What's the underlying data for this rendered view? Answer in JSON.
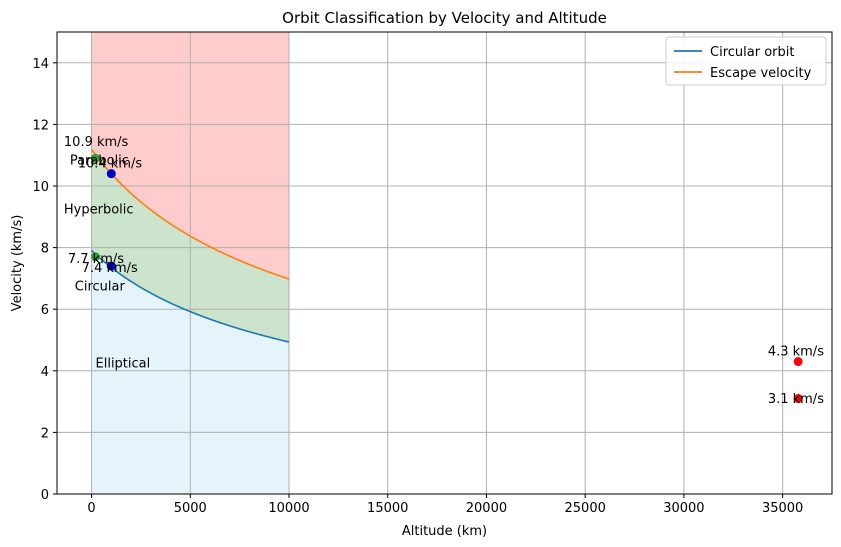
{
  "chart_data": {
    "type": "line",
    "title": "Orbit Classification by Velocity and Altitude",
    "xlabel": "Altitude (km)",
    "ylabel": "Velocity (km/s)",
    "xlim": [
      -1750,
      37500
    ],
    "ylim": [
      0,
      15
    ],
    "x_ticks": [
      0,
      5000,
      10000,
      15000,
      20000,
      25000,
      30000,
      35000
    ],
    "y_ticks": [
      0,
      2,
      4,
      6,
      8,
      10,
      12,
      14
    ],
    "grid": true,
    "legend_position": "top-right",
    "curve_altitude_range": [
      0,
      10000
    ],
    "series": [
      {
        "name": "Circular orbit",
        "color": "#1f77b4",
        "formula": "sqrt(398600/(6371+h))"
      },
      {
        "name": "Escape velocity",
        "color": "#ff7f0e",
        "formula": "sqrt(2*398600/(6371+h))"
      }
    ],
    "regions": [
      {
        "label": "Elliptical",
        "color": "#e5f3fa",
        "from": "0",
        "to": "Circular orbit",
        "label_at": [
          200,
          4.1
        ]
      },
      {
        "label": "Hyperbolic",
        "color": "#cce3cc",
        "from": "Circular orbit",
        "to": "Escape velocity",
        "label_at": [
          -1400,
          9.1
        ]
      },
      {
        "label": "Parabolic",
        "color": "#ffcccc",
        "from": "Escape velocity",
        "to": "top",
        "label_at": [
          -1100,
          10.7
        ]
      }
    ],
    "extra_labels": [
      {
        "text": "Circular",
        "x": -850,
        "y": 6.6
      }
    ],
    "points": [
      {
        "x": 200,
        "y": 7.7,
        "label": "7.7 km/s",
        "color": "#2ca02c",
        "label_at": [
          -1200,
          7.5
        ]
      },
      {
        "x": 200,
        "y": 10.9,
        "label": "10.9 km/s",
        "color": "#2ca02c",
        "label_at": [
          -1400,
          11.3
        ]
      },
      {
        "x": 1000,
        "y": 7.4,
        "label": "7.4 km/s",
        "color": "#0000cc",
        "label_at": [
          -500,
          7.2
        ]
      },
      {
        "x": 1000,
        "y": 10.4,
        "label": "10.4 km/s",
        "color": "#0000cc",
        "label_at": [
          -700,
          10.6
        ]
      },
      {
        "x": 35786,
        "y": 4.3,
        "label": "4.3 km/s",
        "color": "#ff0000",
        "label_at": [
          34250,
          4.5
        ]
      },
      {
        "x": 35786,
        "y": 3.1,
        "label": "3.1 km/s",
        "color": "#ff0000",
        "label_at": [
          34250,
          2.95
        ]
      }
    ]
  }
}
